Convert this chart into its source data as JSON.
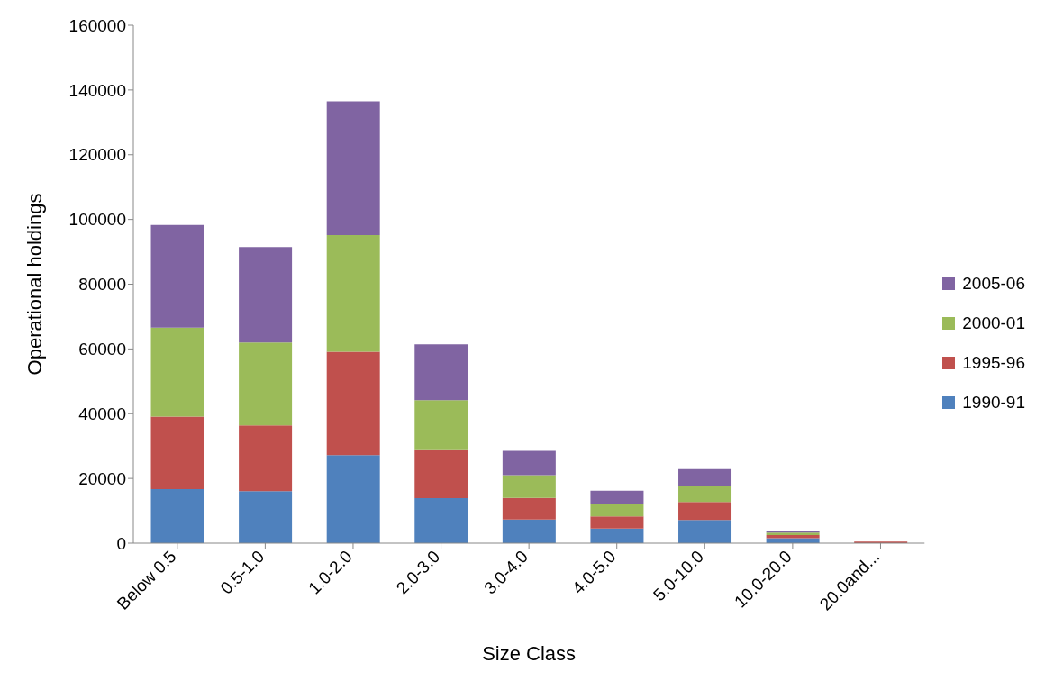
{
  "chart_data": {
    "type": "bar",
    "stacked": true,
    "xlabel": "Size Class",
    "ylabel": "Operational holdings",
    "categories": [
      "Below 0.5",
      "0.5-1.0",
      "1.0-2.0",
      "2.0-3.0",
      "3.0-4.0",
      "4.0-5.0",
      "5.0-10.0",
      "10.0-20.0",
      "20.0and..."
    ],
    "series": [
      {
        "name": "1990-91",
        "color": "#4f81bd",
        "values": [
          16700,
          16100,
          27200,
          13900,
          7300,
          4500,
          7200,
          1500,
          null
        ]
      },
      {
        "name": "1995-96",
        "color": "#c0504d",
        "values": [
          22400,
          20300,
          31900,
          14800,
          6700,
          3800,
          5500,
          1000,
          500
        ]
      },
      {
        "name": "2000-01",
        "color": "#9bbb59",
        "values": [
          27500,
          25600,
          36100,
          15500,
          7000,
          3800,
          5000,
          800,
          null
        ]
      },
      {
        "name": "2005-06",
        "color": "#8064a2",
        "values": [
          31700,
          29500,
          41300,
          17200,
          7500,
          4100,
          5200,
          600,
          null
        ]
      }
    ],
    "ylim": [
      0,
      160000
    ],
    "yticks": [
      0,
      20000,
      40000,
      60000,
      80000,
      100000,
      120000,
      140000,
      160000
    ],
    "grid": false,
    "legend": "right"
  }
}
